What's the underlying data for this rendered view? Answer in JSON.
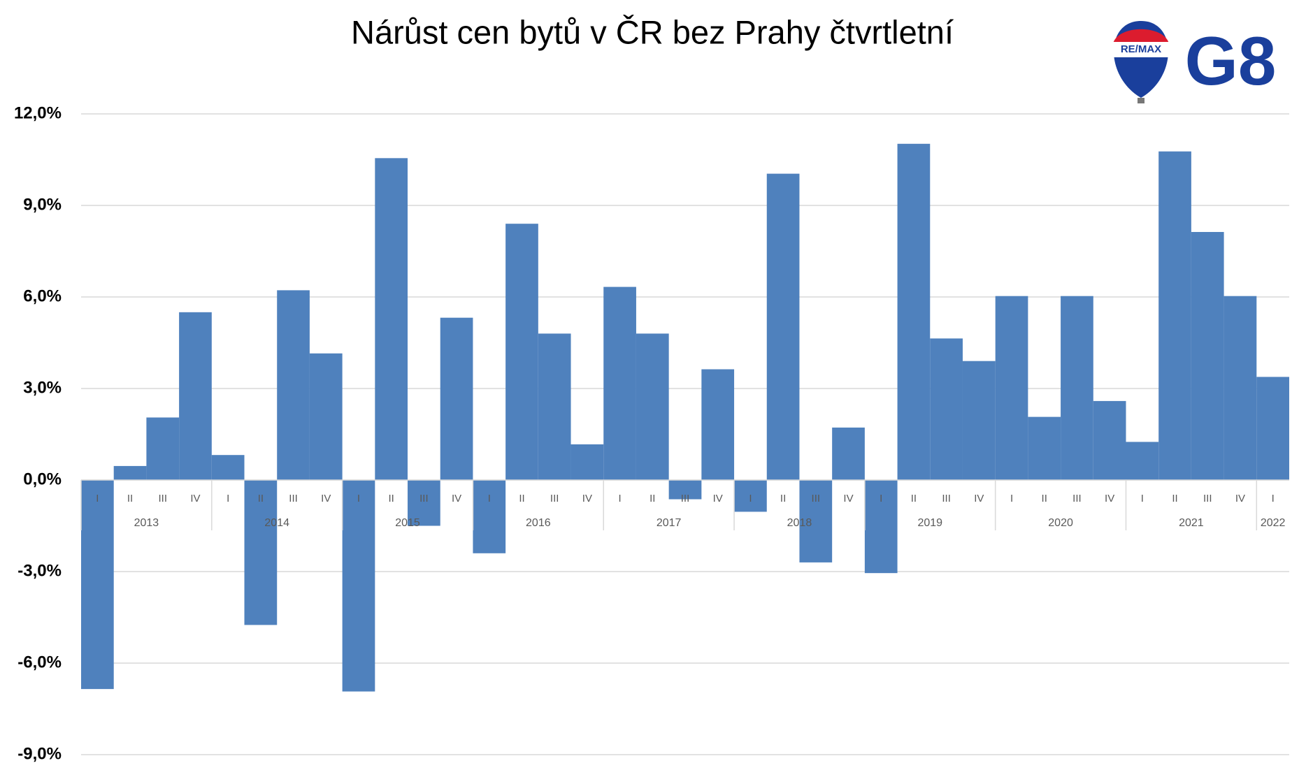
{
  "chart_data": {
    "type": "bar",
    "title": "Nárůst cen bytů v ČR bez Prahy čtvrtletní",
    "categories": [
      "I",
      "II",
      "III",
      "IV",
      "I",
      "II",
      "III",
      "IV",
      "I",
      "II",
      "III",
      "IV",
      "I",
      "II",
      "III",
      "IV",
      "I",
      "II",
      "III",
      "IV",
      "I",
      "II",
      "III",
      "IV",
      "I",
      "II",
      "III",
      "IV",
      "I",
      "II",
      "III",
      "IV",
      "I",
      "II",
      "III",
      "IV",
      "I"
    ],
    "years": [
      "2013",
      "2014",
      "2015",
      "2016",
      "2017",
      "2018",
      "2019",
      "2020",
      "2021",
      "2022"
    ],
    "values": [
      -6.85,
      0.46,
      2.05,
      5.5,
      0.82,
      -4.75,
      6.22,
      4.15,
      -6.93,
      10.55,
      -1.5,
      5.32,
      -2.4,
      8.4,
      4.8,
      1.17,
      6.33,
      4.8,
      -0.63,
      3.63,
      -1.04,
      10.04,
      -2.7,
      1.72,
      -3.05,
      11.02,
      4.64,
      3.9,
      6.03,
      2.07,
      6.03,
      2.59,
      1.25,
      10.77,
      8.13,
      6.03,
      3.38
    ],
    "color": "#4f81bd",
    "ylim": [
      -9,
      12
    ],
    "yticks": [
      {
        "value": -9,
        "label": "-9,0%"
      },
      {
        "value": -6,
        "label": "-6,0%"
      },
      {
        "value": -3,
        "label": "-3,0%"
      },
      {
        "value": 0,
        "label": "0,0%"
      },
      {
        "value": 3,
        "label": "3,0%"
      },
      {
        "value": 6,
        "label": "6,0%"
      },
      {
        "value": 9,
        "label": "9,0%"
      },
      {
        "value": 12,
        "label": "12,0%"
      }
    ],
    "grid": true
  },
  "logo": {
    "brand": "RE/MAX",
    "office": "G8"
  }
}
